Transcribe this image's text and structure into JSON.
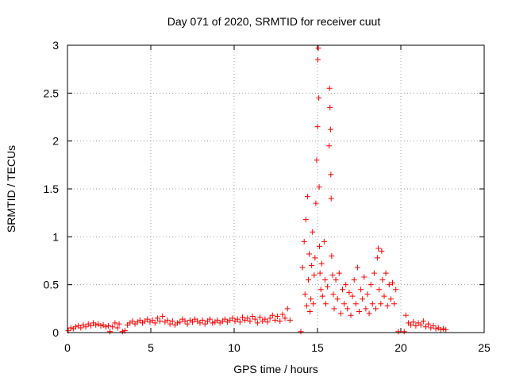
{
  "chart_data": {
    "type": "scatter",
    "title": "Day 071 of 2020, SRMTID for receiver cuut",
    "xlabel": "GPS time / hours",
    "ylabel": "SRMTID / TECUs",
    "xlim": [
      0,
      25
    ],
    "ylim": [
      0,
      3
    ],
    "grid": true,
    "marker": "+",
    "series": [
      {
        "name": "SRMTID",
        "color": "#ff0000",
        "points": [
          [
            0.05,
            0.02
          ],
          [
            0.2,
            0.05
          ],
          [
            0.35,
            0.04
          ],
          [
            0.5,
            0.06
          ],
          [
            0.65,
            0.07
          ],
          [
            0.8,
            0.05
          ],
          [
            0.95,
            0.08
          ],
          [
            1.1,
            0.06
          ],
          [
            1.25,
            0.09
          ],
          [
            1.4,
            0.07
          ],
          [
            1.55,
            0.1
          ],
          [
            1.7,
            0.08
          ],
          [
            1.85,
            0.09
          ],
          [
            2.0,
            0.07
          ],
          [
            2.15,
            0.08
          ],
          [
            2.3,
            0.06
          ],
          [
            2.45,
            0.07
          ],
          [
            2.55,
            0.01
          ],
          [
            2.7,
            0.06
          ],
          [
            2.85,
            0.1
          ],
          [
            3.0,
            0.05
          ],
          [
            3.1,
            0.09
          ],
          [
            3.3,
            0.01
          ],
          [
            3.45,
            0.02
          ],
          [
            3.6,
            0.08
          ],
          [
            3.75,
            0.1
          ],
          [
            3.9,
            0.12
          ],
          [
            4.05,
            0.09
          ],
          [
            4.2,
            0.11
          ],
          [
            4.35,
            0.13
          ],
          [
            4.5,
            0.1
          ],
          [
            4.65,
            0.12
          ],
          [
            4.8,
            0.14
          ],
          [
            4.95,
            0.11
          ],
          [
            5.1,
            0.13
          ],
          [
            5.25,
            0.1
          ],
          [
            5.4,
            0.15
          ],
          [
            5.55,
            0.12
          ],
          [
            5.7,
            0.17
          ],
          [
            5.85,
            0.11
          ],
          [
            6.0,
            0.13
          ],
          [
            6.15,
            0.09
          ],
          [
            6.3,
            0.12
          ],
          [
            6.45,
            0.08
          ],
          [
            6.6,
            0.1
          ],
          [
            6.75,
            0.11
          ],
          [
            6.9,
            0.14
          ],
          [
            7.05,
            0.12
          ],
          [
            7.2,
            0.09
          ],
          [
            7.35,
            0.13
          ],
          [
            7.5,
            0.11
          ],
          [
            7.65,
            0.14
          ],
          [
            7.8,
            0.12
          ],
          [
            7.95,
            0.1
          ],
          [
            8.1,
            0.13
          ],
          [
            8.25,
            0.09
          ],
          [
            8.4,
            0.12
          ],
          [
            8.55,
            0.14
          ],
          [
            8.7,
            0.1
          ],
          [
            8.85,
            0.11
          ],
          [
            9.0,
            0.13
          ],
          [
            9.15,
            0.1
          ],
          [
            9.3,
            0.12
          ],
          [
            9.45,
            0.14
          ],
          [
            9.6,
            0.11
          ],
          [
            9.75,
            0.13
          ],
          [
            9.9,
            0.15
          ],
          [
            10.05,
            0.12
          ],
          [
            10.2,
            0.14
          ],
          [
            10.35,
            0.11
          ],
          [
            10.5,
            0.16
          ],
          [
            10.65,
            0.13
          ],
          [
            10.8,
            0.15
          ],
          [
            10.95,
            0.12
          ],
          [
            11.1,
            0.17
          ],
          [
            11.25,
            0.14
          ],
          [
            11.4,
            0.1
          ],
          [
            11.55,
            0.16
          ],
          [
            11.7,
            0.12
          ],
          [
            11.85,
            0.14
          ],
          [
            12.0,
            0.11
          ],
          [
            12.15,
            0.15
          ],
          [
            12.3,
            0.18
          ],
          [
            12.45,
            0.13
          ],
          [
            12.6,
            0.17
          ],
          [
            12.75,
            0.12
          ],
          [
            12.9,
            0.19
          ],
          [
            13.05,
            0.15
          ],
          [
            13.2,
            0.25
          ],
          [
            13.35,
            0.13
          ],
          [
            14.0,
            0.01
          ],
          [
            14.1,
            0.68
          ],
          [
            14.2,
            0.95
          ],
          [
            14.25,
            0.4
          ],
          [
            14.3,
            1.18
          ],
          [
            14.35,
            0.28
          ],
          [
            14.4,
            1.42
          ],
          [
            14.45,
            0.55
          ],
          [
            14.5,
            0.82
          ],
          [
            14.55,
            0.22
          ],
          [
            14.6,
            0.35
          ],
          [
            14.65,
            0.7
          ],
          [
            14.7,
            1.05
          ],
          [
            14.75,
            0.3
          ],
          [
            14.8,
            0.6
          ],
          [
            14.85,
            0.78
          ],
          [
            14.9,
            1.35
          ],
          [
            14.95,
            1.8
          ],
          [
            15.0,
            2.15
          ],
          [
            15.02,
            2.85
          ],
          [
            15.05,
            2.97
          ],
          [
            15.08,
            2.45
          ],
          [
            15.1,
            1.52
          ],
          [
            15.12,
            0.9
          ],
          [
            15.15,
            0.62
          ],
          [
            15.2,
            0.45
          ],
          [
            15.25,
            0.72
          ],
          [
            15.3,
            0.38
          ],
          [
            15.4,
            0.95
          ],
          [
            15.45,
            0.55
          ],
          [
            15.5,
            0.3
          ],
          [
            15.6,
            0.48
          ],
          [
            15.7,
            1.95
          ],
          [
            15.72,
            2.55
          ],
          [
            15.75,
            2.35
          ],
          [
            15.78,
            2.12
          ],
          [
            15.8,
            1.65
          ],
          [
            15.82,
            1.4
          ],
          [
            15.85,
            0.8
          ],
          [
            15.9,
            0.6
          ],
          [
            15.95,
            0.4
          ],
          [
            16.0,
            0.25
          ],
          [
            16.1,
            0.55
          ],
          [
            16.2,
            0.35
          ],
          [
            16.3,
            0.62
          ],
          [
            16.4,
            0.2
          ],
          [
            16.5,
            0.45
          ],
          [
            16.6,
            0.3
          ],
          [
            16.7,
            0.5
          ],
          [
            16.8,
            0.25
          ],
          [
            16.9,
            0.42
          ],
          [
            17.0,
            0.18
          ],
          [
            17.1,
            0.38
          ],
          [
            17.2,
            0.55
          ],
          [
            17.3,
            0.3
          ],
          [
            17.4,
            0.68
          ],
          [
            17.5,
            0.22
          ],
          [
            17.6,
            0.45
          ],
          [
            17.7,
            0.35
          ],
          [
            17.8,
            0.58
          ],
          [
            17.9,
            0.25
          ],
          [
            18.0,
            0.4
          ],
          [
            18.1,
            0.2
          ],
          [
            18.2,
            0.5
          ],
          [
            18.3,
            0.3
          ],
          [
            18.4,
            0.62
          ],
          [
            18.5,
            0.25
          ],
          [
            18.6,
            0.78
          ],
          [
            18.65,
            0.88
          ],
          [
            18.7,
            0.45
          ],
          [
            18.8,
            0.3
          ],
          [
            18.85,
            0.85
          ],
          [
            18.9,
            0.55
          ],
          [
            19.0,
            0.38
          ],
          [
            19.1,
            0.62
          ],
          [
            19.2,
            0.28
          ],
          [
            19.3,
            0.5
          ],
          [
            19.4,
            0.35
          ],
          [
            19.5,
            0.52
          ],
          [
            19.6,
            0.3
          ],
          [
            19.7,
            0.45
          ],
          [
            19.85,
            0.01
          ],
          [
            20.2,
            0.01
          ],
          [
            20.3,
            0.18
          ],
          [
            20.45,
            0.1
          ],
          [
            20.6,
            0.08
          ],
          [
            20.75,
            0.11
          ],
          [
            20.9,
            0.07
          ],
          [
            21.05,
            0.1
          ],
          [
            21.2,
            0.08
          ],
          [
            21.35,
            0.12
          ],
          [
            21.5,
            0.06
          ],
          [
            21.65,
            0.09
          ],
          [
            21.8,
            0.05
          ],
          [
            21.95,
            0.07
          ],
          [
            22.1,
            0.04
          ],
          [
            22.25,
            0.05
          ],
          [
            22.4,
            0.03
          ],
          [
            22.55,
            0.04
          ],
          [
            22.7,
            0.03
          ]
        ]
      }
    ]
  }
}
